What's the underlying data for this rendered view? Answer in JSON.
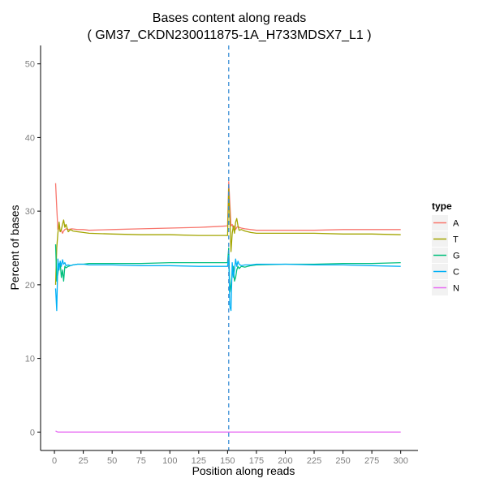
{
  "chart_data": {
    "type": "line",
    "title": "Bases content along reads",
    "subtitle": "( GM37_CKDN230011875-1A_H733MDSX7_L1 )",
    "xlabel": "Position along reads",
    "ylabel": "Percent of bases",
    "xlim": [
      -12,
      315
    ],
    "ylim": [
      -2.5,
      52.5
    ],
    "x_ticks": [
      0,
      25,
      50,
      75,
      100,
      125,
      150,
      175,
      200,
      225,
      250,
      275,
      300
    ],
    "y_ticks": [
      0,
      10,
      20,
      30,
      40,
      50
    ],
    "grid": false,
    "vline": {
      "x": 151,
      "color": "#3a8fd6",
      "style": "dashed"
    },
    "legend": {
      "title": "type",
      "position": "right",
      "entries": [
        "A",
        "T",
        "G",
        "C",
        "N"
      ]
    },
    "series": [
      {
        "name": "A",
        "color": "#f8766d",
        "x": [
          1,
          2,
          3,
          4,
          5,
          6,
          7,
          8,
          9,
          10,
          12,
          15,
          20,
          25,
          30,
          50,
          75,
          100,
          125,
          140,
          150,
          151,
          152,
          153,
          154,
          155,
          156,
          157,
          158,
          159,
          160,
          162,
          165,
          170,
          175,
          200,
          225,
          250,
          275,
          300
        ],
        "y": [
          33.8,
          30.5,
          27.5,
          27.8,
          27.2,
          27.4,
          27.0,
          27.3,
          27.5,
          27.6,
          27.5,
          27.6,
          27.5,
          27.5,
          27.4,
          27.5,
          27.6,
          27.7,
          27.8,
          27.9,
          28.0,
          34.0,
          31.0,
          28.0,
          28.2,
          27.6,
          28.0,
          27.5,
          27.8,
          27.9,
          27.8,
          27.7,
          27.6,
          27.5,
          27.4,
          27.4,
          27.4,
          27.5,
          27.5,
          27.5
        ]
      },
      {
        "name": "T",
        "color": "#a3a500",
        "x": [
          1,
          2,
          3,
          4,
          5,
          6,
          7,
          8,
          9,
          10,
          12,
          14,
          16,
          20,
          25,
          30,
          50,
          75,
          100,
          125,
          140,
          150,
          151,
          152,
          153,
          154,
          155,
          156,
          157,
          158,
          159,
          160,
          162,
          165,
          170,
          175,
          200,
          225,
          250,
          275,
          300
        ],
        "y": [
          20.0,
          25.0,
          27.0,
          28.5,
          27.2,
          27.5,
          28.2,
          28.8,
          27.8,
          28.2,
          27.2,
          27.5,
          27.3,
          27.2,
          27.1,
          27.0,
          26.9,
          26.8,
          26.8,
          26.7,
          26.7,
          26.7,
          33.0,
          29.0,
          24.5,
          27.0,
          28.0,
          27.0,
          28.5,
          29.0,
          28.0,
          27.4,
          27.5,
          27.3,
          27.1,
          27.0,
          27.0,
          27.0,
          26.9,
          26.9,
          26.8
        ]
      },
      {
        "name": "G",
        "color": "#00bf7d",
        "x": [
          1,
          2,
          3,
          4,
          5,
          6,
          7,
          8,
          9,
          10,
          12,
          14,
          16,
          20,
          25,
          30,
          50,
          75,
          100,
          125,
          140,
          150,
          151,
          152,
          153,
          154,
          155,
          156,
          157,
          158,
          159,
          160,
          162,
          165,
          170,
          175,
          200,
          225,
          250,
          275,
          300
        ],
        "y": [
          25.5,
          20.5,
          21.5,
          22.8,
          23.0,
          21.0,
          22.0,
          20.5,
          22.5,
          22.3,
          22.5,
          22.6,
          22.7,
          22.8,
          22.8,
          22.9,
          22.9,
          22.9,
          23.0,
          23.0,
          23.0,
          23.0,
          25.0,
          19.0,
          20.0,
          21.5,
          22.5,
          20.5,
          21.0,
          22.0,
          22.5,
          22.2,
          22.5,
          22.4,
          22.6,
          22.7,
          22.8,
          22.8,
          22.9,
          22.9,
          23.0
        ]
      },
      {
        "name": "C",
        "color": "#00b0f6",
        "x": [
          1,
          2,
          3,
          4,
          5,
          6,
          7,
          8,
          9,
          10,
          12,
          14,
          16,
          20,
          25,
          30,
          50,
          75,
          100,
          125,
          140,
          150,
          151,
          152,
          153,
          154,
          155,
          156,
          157,
          158,
          159,
          160,
          162,
          165,
          170,
          175,
          200,
          225,
          250,
          275,
          300
        ],
        "y": [
          19.5,
          16.5,
          23.5,
          22.0,
          23.2,
          22.5,
          23.4,
          22.8,
          23.0,
          22.6,
          22.7,
          22.6,
          22.7,
          22.8,
          22.8,
          22.7,
          22.7,
          22.6,
          22.6,
          22.5,
          22.5,
          22.5,
          24.0,
          17.0,
          16.5,
          23.0,
          21.0,
          22.0,
          23.5,
          22.5,
          23.2,
          22.8,
          22.6,
          22.7,
          22.7,
          22.8,
          22.8,
          22.7,
          22.7,
          22.6,
          22.5
        ]
      },
      {
        "name": "N",
        "color": "#e76bf3",
        "x": [
          1,
          3,
          300
        ],
        "y": [
          0.15,
          0.0,
          0.0
        ]
      }
    ]
  }
}
